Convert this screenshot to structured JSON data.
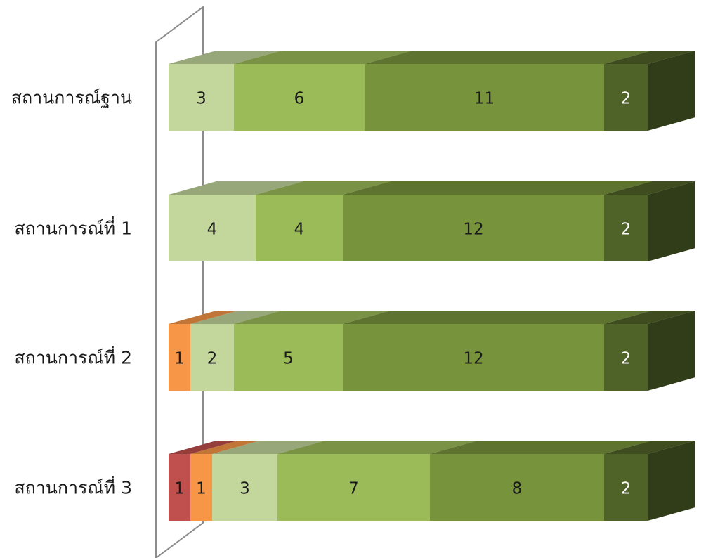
{
  "chart_data": {
    "type": "bar",
    "orientation": "horizontal",
    "stacked": true,
    "style": "3d",
    "categories": [
      "สถานการณ์ฐาน",
      "สถานการณ์ที่ 1",
      "สถานการณ์ที่ 2",
      "สถานการณ์ที่ 3"
    ],
    "series": [
      {
        "values": [
          0,
          0,
          0,
          1
        ],
        "color": "#c0504d"
      },
      {
        "values": [
          0,
          0,
          1,
          1
        ],
        "color": "#f79646"
      },
      {
        "values": [
          3,
          4,
          2,
          3
        ],
        "color": "#c3d69b"
      },
      {
        "values": [
          6,
          4,
          5,
          7
        ],
        "color": "#9bbb59"
      },
      {
        "values": [
          11,
          12,
          12,
          8
        ],
        "color": "#77933c"
      },
      {
        "values": [
          2,
          2,
          2,
          2
        ],
        "color": "#4f6228"
      }
    ],
    "xlim": [
      0,
      22
    ],
    "title": "",
    "xlabel": "",
    "ylabel": "",
    "legend": "none",
    "grid": false
  }
}
